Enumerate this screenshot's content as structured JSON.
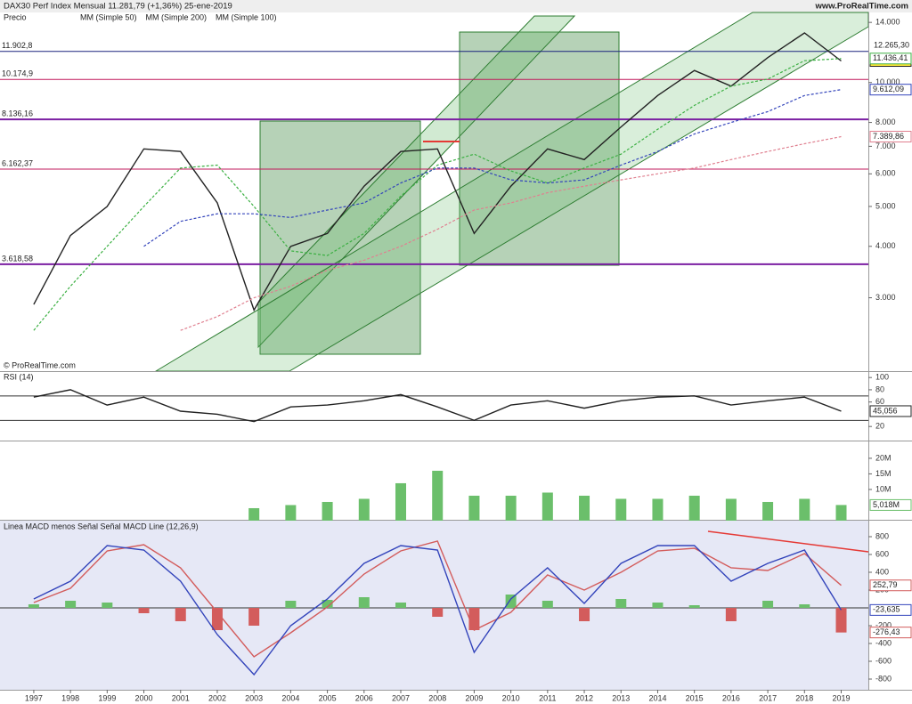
{
  "chart_data": [
    {
      "type": "line",
      "title": "DAX30 Perf Index   Mensual   11.281,79 (+1,36%)   25-ene-2019",
      "source": "www.ProRealTime.com",
      "panel_label": "Precio",
      "copyright": "© ProRealTime.com",
      "log": true,
      "x": [
        1997,
        1998,
        1999,
        2000,
        2001,
        2002,
        2003,
        2004,
        2005,
        2006,
        2007,
        2008,
        2009,
        2010,
        2011,
        2012,
        2013,
        2014,
        2015,
        2016,
        2017,
        2018,
        2019
      ],
      "ylim": [
        1990,
        14800
      ],
      "yticks": [
        {
          "value": 3000,
          "label": "3.000"
        },
        {
          "value": 4000,
          "label": "4.000"
        },
        {
          "value": 5000,
          "label": "5.000"
        },
        {
          "value": 6000,
          "label": "6.000"
        },
        {
          "value": 7000,
          "label": "7.000"
        },
        {
          "value": 8000,
          "label": "8.000"
        },
        {
          "value": 10000,
          "label": "10.000"
        },
        {
          "value": 14000,
          "label": "14.000"
        }
      ],
      "levels": [
        {
          "value": 11902.8,
          "label": "11.902,8",
          "color": "#1a237e"
        },
        {
          "value": 10174.9,
          "label": "10.174,9",
          "color": "#c2185b"
        },
        {
          "value": 8136.16,
          "label": "8.136,16",
          "color": "#7b1fa2"
        },
        {
          "value": 6162.37,
          "label": "6.162,37",
          "color": "#c2185b"
        },
        {
          "value": 3618.58,
          "label": "3.618,58",
          "color": "#7b1fa2"
        }
      ],
      "series": [
        {
          "name": "Precio",
          "color": "#222222",
          "dash": false,
          "legend": false,
          "values": [
            2890,
            4250,
            5000,
            6900,
            6800,
            5100,
            2800,
            4000,
            4300,
            5600,
            6800,
            6900,
            4300,
            5600,
            6900,
            6500,
            7800,
            9300,
            10700,
            9800,
            11500,
            13200,
            11281.79
          ],
          "value_labels": [
            null,
            null,
            null,
            null,
            null,
            null,
            null,
            null,
            null,
            null,
            null,
            null,
            null,
            null,
            null,
            null,
            null,
            null,
            null,
            null,
            null,
            null,
            "11.281,79"
          ]
        },
        {
          "name": "MM (Simple 50)",
          "color": "#3cb043",
          "dash": true,
          "legend": true,
          "values": [
            2500,
            3200,
            4000,
            5000,
            6200,
            6300,
            5000,
            3900,
            3800,
            4300,
            5300,
            6300,
            6700,
            6100,
            5700,
            6200,
            6700,
            7700,
            8800,
            9800,
            10200,
            11300,
            11436.41
          ],
          "value_labels": [
            null,
            null,
            null,
            null,
            null,
            null,
            null,
            null,
            null,
            null,
            null,
            null,
            null,
            null,
            null,
            null,
            null,
            null,
            null,
            null,
            null,
            null,
            "11.436,41"
          ]
        },
        {
          "name": "MM (Simple 200)",
          "color": "#e08090",
          "dash": true,
          "legend": true,
          "values": [
            null,
            null,
            null,
            null,
            2500,
            2700,
            3000,
            3200,
            3500,
            3700,
            4000,
            4400,
            4900,
            5100,
            5400,
            5600,
            5800,
            6000,
            6200,
            6500,
            6800,
            7100,
            7389.86
          ],
          "value_labels": [
            null,
            null,
            null,
            null,
            null,
            null,
            null,
            null,
            null,
            null,
            null,
            null,
            null,
            null,
            null,
            null,
            null,
            null,
            null,
            null,
            null,
            null,
            "7.389,86"
          ]
        },
        {
          "name": "MM (Simple 100)",
          "color": "#3344bb",
          "dash": true,
          "legend": true,
          "values": [
            null,
            null,
            null,
            4000,
            4600,
            4800,
            4800,
            4700,
            4900,
            5100,
            5700,
            6200,
            6200,
            5800,
            5700,
            5800,
            6300,
            6800,
            7500,
            8000,
            8500,
            9300,
            9612.09
          ],
          "value_labels": [
            null,
            null,
            null,
            null,
            null,
            null,
            null,
            null,
            null,
            null,
            null,
            null,
            null,
            null,
            null,
            null,
            null,
            null,
            null,
            null,
            null,
            null,
            "9.612,09"
          ]
        }
      ],
      "extra_label": "12.265,30"
    },
    {
      "type": "line",
      "panel_label": "RSI (14)",
      "x": [
        1997,
        1998,
        1999,
        2000,
        2001,
        2002,
        2003,
        2004,
        2005,
        2006,
        2007,
        2008,
        2009,
        2010,
        2011,
        2012,
        2013,
        2014,
        2015,
        2016,
        2017,
        2018,
        2019
      ],
      "ylim": [
        -3,
        109
      ],
      "yticks": [
        20,
        60,
        80,
        100
      ],
      "levels": [
        70,
        30
      ],
      "series": [
        {
          "name": "RSI",
          "color": "#222222",
          "dash": false,
          "legend": false,
          "values": [
            68,
            80,
            55,
            68,
            45,
            40,
            28,
            52,
            55,
            62,
            72,
            52,
            30,
            55,
            62,
            50,
            62,
            68,
            70,
            55,
            62,
            68,
            45.056
          ],
          "value_labels": [
            null,
            null,
            null,
            null,
            null,
            null,
            null,
            null,
            null,
            null,
            null,
            null,
            null,
            null,
            null,
            null,
            null,
            null,
            null,
            null,
            null,
            null,
            "45,056"
          ]
        }
      ]
    },
    {
      "type": "bar",
      "x": [
        1997,
        1998,
        1999,
        2000,
        2001,
        2002,
        2003,
        2004,
        2005,
        2006,
        2007,
        2008,
        2009,
        2010,
        2011,
        2012,
        2013,
        2014,
        2015,
        2016,
        2017,
        2018,
        2019
      ],
      "ylim": [
        0,
        25400000
      ],
      "yticks": [
        {
          "value": 10000000,
          "label": "10M"
        },
        {
          "value": 15000000,
          "label": "15M"
        },
        {
          "value": 20000000,
          "label": "20M"
        }
      ],
      "series": [
        {
          "name": "Volumen",
          "color": "#6bbf6b",
          "legend": false,
          "values": [
            null,
            null,
            null,
            null,
            null,
            null,
            4000000,
            5000000,
            6000000,
            7000000,
            12000000,
            16000000,
            8000000,
            8000000,
            9000000,
            8000000,
            7000000,
            7000000,
            8000000,
            7000000,
            6000000,
            7000000,
            5018000
          ],
          "value_labels": [
            null,
            null,
            null,
            null,
            null,
            null,
            null,
            null,
            null,
            null,
            null,
            null,
            null,
            null,
            null,
            null,
            null,
            null,
            null,
            null,
            null,
            null,
            "5,018M"
          ]
        }
      ]
    },
    {
      "type": "line",
      "legend_text": "Linea MACD menos Señal  Señal  MACD Line (12,26,9)",
      "x": [
        1997,
        1998,
        1999,
        2000,
        2001,
        2002,
        2003,
        2004,
        2005,
        2006,
        2007,
        2008,
        2009,
        2010,
        2011,
        2012,
        2013,
        2014,
        2015,
        2016,
        2017,
        2018,
        2019
      ],
      "xlim": [
        1996.08,
        2019.74
      ],
      "xticks": [
        1997,
        1998,
        1999,
        2000,
        2001,
        2002,
        2003,
        2004,
        2005,
        2006,
        2007,
        2008,
        2009,
        2010,
        2011,
        2012,
        2013,
        2014,
        2015,
        2016,
        2017,
        2018,
        2019
      ],
      "ylim": [
        -920,
        990
      ],
      "yticks": [
        {
          "value": -800,
          "label": "-800"
        },
        {
          "value": -600,
          "label": "-600"
        },
        {
          "value": -400,
          "label": "-400"
        },
        {
          "value": -200,
          "label": "-200"
        },
        200,
        400,
        600,
        800
      ],
      "levels": [
        0
      ],
      "series": [
        {
          "name": "Linea MACD menos Señal",
          "color": "#d35c5c",
          "style": "bar",
          "legend": false,
          "values": [
            40,
            80,
            60,
            -60,
            -150,
            -250,
            -200,
            80,
            90,
            120,
            60,
            -100,
            -250,
            150,
            80,
            -150,
            100,
            60,
            30,
            -150,
            80,
            40,
            -276.43
          ],
          "value_labels": [
            null,
            null,
            null,
            null,
            null,
            null,
            null,
            null,
            null,
            null,
            null,
            null,
            null,
            null,
            null,
            null,
            null,
            null,
            null,
            null,
            null,
            null,
            "-276,43"
          ]
        },
        {
          "name": "Señal",
          "color": "#d35c5c",
          "style": "line",
          "legend": false,
          "values": [
            60,
            220,
            640,
            710,
            450,
            -50,
            -550,
            -280,
            10,
            380,
            640,
            750,
            -250,
            -50,
            370,
            200,
            400,
            640,
            670,
            450,
            420,
            610,
            252.79
          ],
          "value_labels": [
            null,
            null,
            null,
            null,
            null,
            null,
            null,
            null,
            null,
            null,
            null,
            null,
            null,
            null,
            null,
            null,
            null,
            null,
            null,
            null,
            null,
            null,
            "252,79"
          ]
        },
        {
          "name": "MACD Line (12,26,9)",
          "color": "#3344bb",
          "style": "line",
          "legend": false,
          "values": [
            100,
            300,
            700,
            650,
            300,
            -300,
            -750,
            -200,
            100,
            500,
            700,
            650,
            -500,
            100,
            450,
            50,
            500,
            700,
            700,
            300,
            500,
            650,
            -23.635
          ],
          "value_labels": [
            null,
            null,
            null,
            null,
            null,
            null,
            null,
            null,
            null,
            null,
            null,
            null,
            null,
            null,
            null,
            null,
            null,
            null,
            null,
            null,
            null,
            null,
            "-23,635"
          ]
        }
      ]
    }
  ]
}
